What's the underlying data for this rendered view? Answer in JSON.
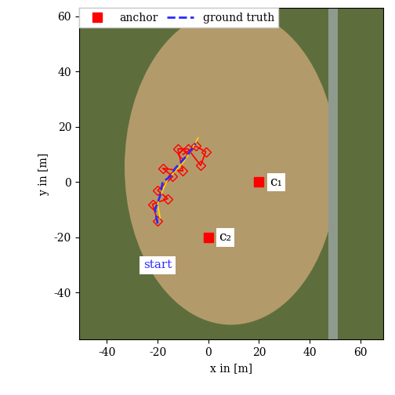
{
  "chart_data": {
    "type": "line",
    "xlabel": "x in [m]",
    "ylabel": "y in [m]",
    "xlim": [
      -51,
      69
    ],
    "ylim": [
      -57,
      63
    ],
    "xticks": [
      -40,
      -20,
      0,
      20,
      40,
      60
    ],
    "yticks": [
      -40,
      -20,
      0,
      20,
      40,
      60
    ],
    "legend": "upper left",
    "annotations": [
      {
        "text": "start",
        "x": -20,
        "y": -30
      }
    ],
    "series": [
      {
        "color": "#ff0000",
        "type": "line",
        "marker": "diamond",
        "line_style": "solid",
        "x": [
          -20,
          -22,
          -16,
          -20,
          -14,
          -18,
          -10,
          -12,
          -8,
          -3,
          -1,
          -5,
          -10
        ],
        "values": [
          -14,
          -8,
          -6,
          -3,
          2,
          5,
          4,
          12,
          12,
          6,
          11,
          13,
          10
        ]
      },
      {
        "color": "#ffd800",
        "type": "line",
        "marker": "none",
        "line_style": "solid",
        "x": [
          -19,
          -20,
          -18,
          -16,
          -13,
          -10,
          -7,
          -4
        ],
        "values": [
          -13,
          -8,
          -3,
          1,
          4,
          7,
          11,
          16
        ]
      },
      {
        "name": "ground truth",
        "color": "#2a2aff",
        "type": "line",
        "marker": "none",
        "line_style": "dashed",
        "x": [
          -20,
          -21,
          -19,
          -18,
          -15,
          -13,
          -10,
          -8,
          -5
        ],
        "values": [
          -15,
          -10,
          -5,
          0,
          2,
          5,
          8,
          10,
          14
        ]
      },
      {
        "name": "anchor",
        "color": "#ff0000",
        "type": "scatter",
        "marker": "square",
        "line_style": "none",
        "x": [
          20,
          0
        ],
        "values": [
          0,
          -20
        ],
        "point_labels": [
          "c₁",
          "c₂"
        ]
      }
    ]
  }
}
